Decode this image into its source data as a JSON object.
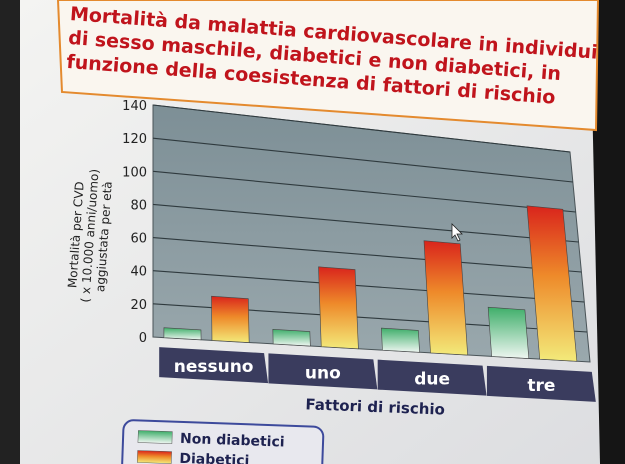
{
  "chart_data": {
    "type": "bar",
    "title": "Mortalità da malattia cardiovascolare in individui di sesso maschile, diabetici e non diabetici, in funzione della coesistenza di fattori di rischio",
    "title_lines": [
      "Mortalità da malattia cardiovascolare in individui",
      "di sesso maschile, diabetici e non diabetici, in",
      "funzione della coesistenza di fattori di rischio"
    ],
    "ylabel_lines": [
      "Mortalità per CVD",
      "( x 10.000 anni/uomo)",
      "aggiustata per età"
    ],
    "xlabel": "Fattori di rischio",
    "categories": [
      "nessuno",
      "uno",
      "due",
      "tre"
    ],
    "ylim": [
      0,
      140
    ],
    "yticks": [
      0,
      20,
      40,
      60,
      80,
      100,
      120,
      140
    ],
    "grid": true,
    "legend_position": "bottom-left",
    "series": [
      {
        "name": "Non diabetici",
        "values": [
          6,
          9,
          14,
          32
        ],
        "color_top": "#3fae6a",
        "color_bottom": "#e6f2ea"
      },
      {
        "name": "Diabetici",
        "values": [
          27,
          50,
          72,
          101
        ],
        "color_top": "#d9241c",
        "color_bottom": "#f1e46a"
      }
    ]
  }
}
